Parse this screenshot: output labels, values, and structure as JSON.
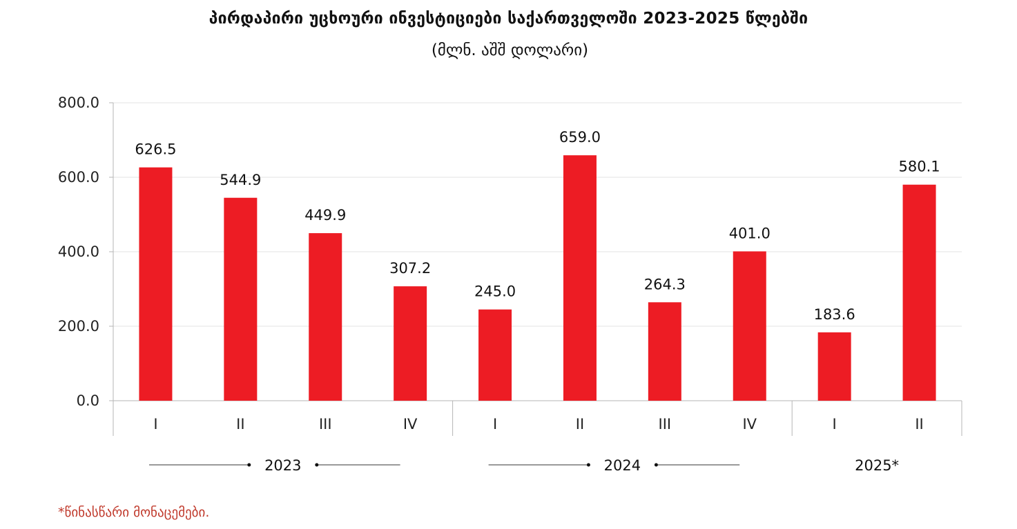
{
  "chart_data": {
    "type": "bar",
    "title": "პირდაპირი უცხოური ინვესტიციები საქართველოში 2023-2025 წლებში",
    "subtitle": "(მლნ. აშშ დოლარი)",
    "categories": [
      "I",
      "II",
      "III",
      "IV",
      "I",
      "II",
      "III",
      "IV",
      "I",
      "II"
    ],
    "years": [
      {
        "label": "2023",
        "quarters": 4
      },
      {
        "label": "2024",
        "quarters": 4
      },
      {
        "label": "2025*",
        "quarters": 2
      }
    ],
    "values": [
      626.5,
      544.9,
      449.9,
      307.2,
      245.0,
      659.0,
      264.3,
      401.0,
      183.6,
      580.1
    ],
    "value_labels": [
      "626.5",
      "544.9",
      "449.9",
      "307.2",
      "245.0",
      "659.0",
      "264.3",
      "401.0",
      "183.6",
      "580.1"
    ],
    "ylim": [
      0,
      800
    ],
    "yticks": [
      0,
      200,
      400,
      600,
      800
    ],
    "ytick_labels": [
      "0.0",
      "200.0",
      "400.0",
      "600.0",
      "800.0"
    ],
    "grid": true,
    "bar_color": "#ed1c24",
    "footnote": "*წინასწარი მონაცემები.",
    "footnote_color": "#c0392b"
  }
}
